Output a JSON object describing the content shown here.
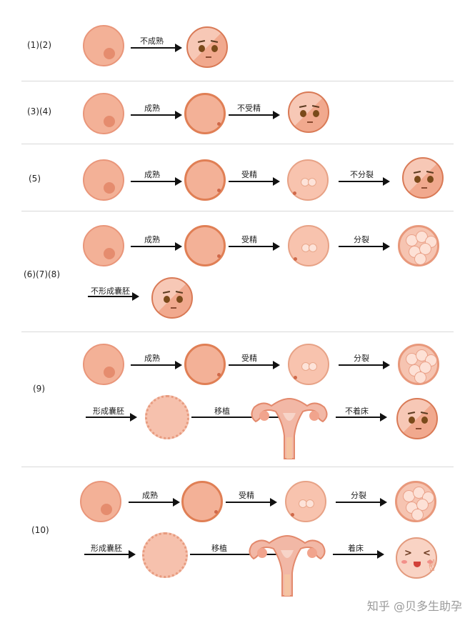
{
  "rows": [
    {
      "label": "(1)(2)",
      "steps": [
        "不成熟"
      ]
    },
    {
      "label": "(3)(4)",
      "steps": [
        "成熟",
        "不受精"
      ]
    },
    {
      "label": "(5)",
      "steps": [
        "成熟",
        "受精",
        "不分裂"
      ]
    },
    {
      "label": "(6)(7)(8)",
      "steps": [
        "成熟",
        "受精",
        "分裂",
        "不形成囊胚"
      ]
    },
    {
      "label": "(9)",
      "steps": [
        "成熟",
        "受精",
        "分裂",
        "形成囊胚",
        "移植",
        "不着床"
      ]
    },
    {
      "label": "(10)",
      "steps": [
        "成熟",
        "受精",
        "分裂",
        "形成囊胚",
        "移植",
        "着床"
      ]
    }
  ],
  "watermark": "知乎 @贝多生助孕",
  "colors": {
    "cell": "#f3b197",
    "cell_border": "#e07f55",
    "arrow": "#111111"
  },
  "icons": [
    "egg-cell",
    "mature-egg",
    "fertilized-egg",
    "dividing-embryo",
    "blastocyst",
    "uterus",
    "sad-face",
    "happy-face"
  ]
}
